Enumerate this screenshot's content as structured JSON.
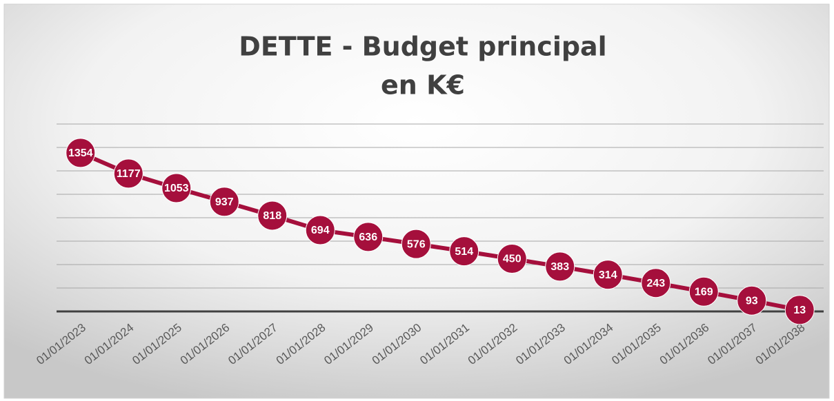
{
  "chart_data": {
    "type": "line",
    "title": [
      "DETTE - Budget principal",
      "en K€"
    ],
    "categories": [
      "01/01/2023",
      "01/01/2024",
      "01/01/2025",
      "01/01/2026",
      "01/01/2027",
      "01/01/2028",
      "01/01/2029",
      "01/01/2030",
      "01/01/2031",
      "01/01/2032",
      "01/01/2033",
      "01/01/2034",
      "01/01/2035",
      "01/01/2036",
      "01/01/2037",
      "01/01/2038"
    ],
    "values": [
      1354,
      1177,
      1053,
      937,
      818,
      694,
      636,
      576,
      514,
      450,
      383,
      314,
      243,
      169,
      93,
      13
    ],
    "color": "#a50f3c",
    "ylim": [
      0,
      1600
    ],
    "yticks": [
      0,
      200,
      400,
      600,
      800,
      1000,
      1200,
      1400,
      1600
    ],
    "grid": true
  }
}
